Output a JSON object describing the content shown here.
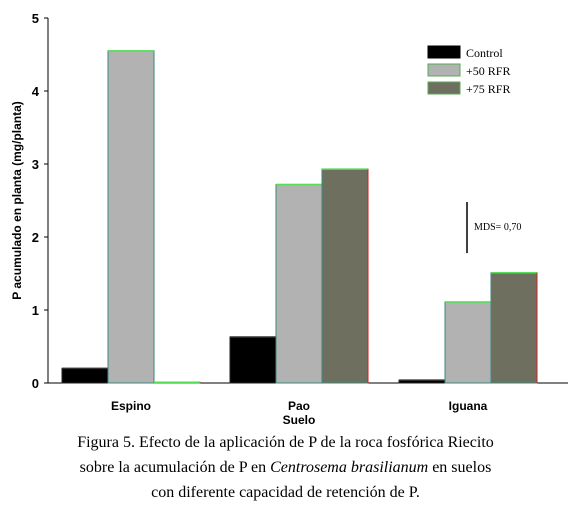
{
  "chart_data": {
    "type": "bar",
    "ylabel": "P acumulado en planta (mg/planta)",
    "ylim": [
      0,
      5
    ],
    "yticks": [
      "0",
      "1",
      "2",
      "3",
      "4",
      "5"
    ],
    "categories": [
      [
        "Espino"
      ],
      [
        "Pao",
        "Suelo"
      ],
      [
        "Iguana"
      ]
    ],
    "series": [
      {
        "name": "Control",
        "values": [
          0.2,
          0.63,
          0.04
        ],
        "color": "#000000"
      },
      {
        "name": "+50 RFR",
        "values": [
          4.55,
          2.72,
          1.11
        ],
        "color": "#b2b2b2"
      },
      {
        "name": "+75 RFR",
        "values": [
          0.0,
          2.93,
          1.51
        ],
        "color": "#6f6f5f"
      }
    ],
    "annotation": {
      "label": "MDS= 0,70",
      "value": 0.7
    },
    "legend_position": "top-right"
  },
  "caption": {
    "line1": "Figura 5. Efecto de la aplicación de P de la roca fosfórica Riecito",
    "line2_pre": "sobre la acumulación de P en ",
    "line2_italic": "Centrosema brasilianum",
    "line2_post": " en suelos",
    "line3": "con diferente capacidad de retención de P."
  }
}
